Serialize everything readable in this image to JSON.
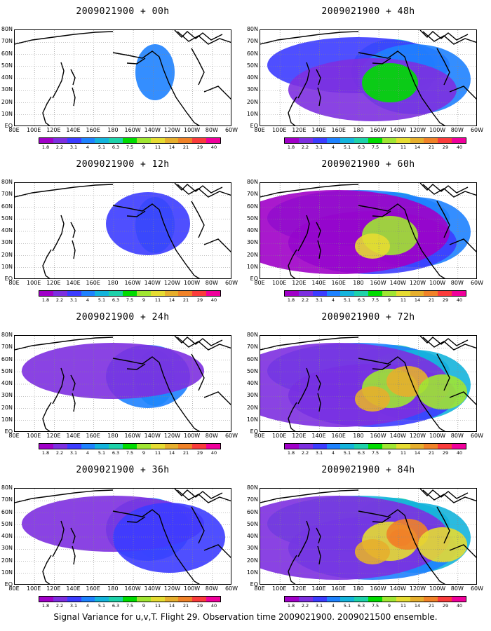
{
  "panels": [
    {
      "title": "2009021900 + 00h",
      "intensity": 0.0
    },
    {
      "title": "2009021900 + 48h",
      "intensity": 0.55
    },
    {
      "title": "2009021900 + 12h",
      "intensity": 0.15
    },
    {
      "title": "2009021900 + 60h",
      "intensity": 0.7
    },
    {
      "title": "2009021900 + 24h",
      "intensity": 0.3
    },
    {
      "title": "2009021900 + 72h",
      "intensity": 0.85
    },
    {
      "title": "2009021900 + 36h",
      "intensity": 0.42
    },
    {
      "title": "2009021900 + 84h",
      "intensity": 1.0
    }
  ],
  "lat_labels": [
    "80N",
    "70N",
    "60N",
    "50N",
    "40N",
    "30N",
    "20N",
    "10N",
    "EQ"
  ],
  "lon_labels": [
    "80E",
    "100E",
    "120E",
    "140E",
    "160E",
    "180",
    "160W",
    "140W",
    "120W",
    "100W",
    "80W",
    "60W"
  ],
  "colorbar": {
    "colors": [
      "#a000c8",
      "#7d2fe0",
      "#3c3cff",
      "#1e82ff",
      "#14b4dc",
      "#1ed2aa",
      "#00dc00",
      "#a0e632",
      "#e6dc32",
      "#e6af2d",
      "#f08228",
      "#fa3c3c",
      "#f0009b"
    ],
    "labels": [
      "1.8",
      "2.2",
      "3.1",
      "4",
      "5.1",
      "6.3",
      "7.5",
      "9",
      "11",
      "14",
      "21",
      "29",
      "40"
    ]
  },
  "caption": "Signal Variance for u,v,T. Flight 29. Observation time 2009021900. 2009021500 ensemble."
}
